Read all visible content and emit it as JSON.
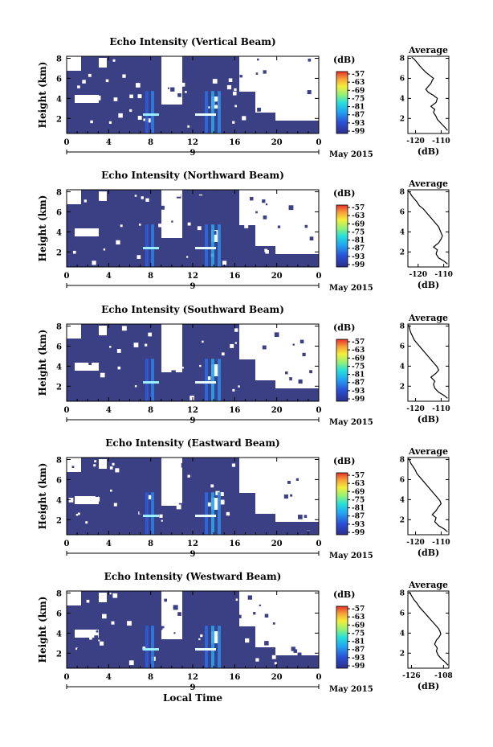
{
  "chart_data": [
    {
      "type": "heatmap",
      "title": "Echo Intensity (Vertical Beam)",
      "ylabel": "Height (km)",
      "yticks": [
        "2",
        "4",
        "6",
        "8"
      ],
      "ylim": [
        0.5,
        8.2
      ],
      "xticks": [
        "0",
        "4",
        "8",
        "12",
        "16",
        "20",
        "0"
      ],
      "xlim": [
        0,
        24
      ],
      "date_label": "9",
      "month_label": "May 2015",
      "colorbar": {
        "unit": "(dB)",
        "ticks": [
          "-57",
          "-63",
          "-69",
          "-75",
          "-81",
          "-87",
          "-93",
          "-99"
        ]
      },
      "profile": {
        "title": "Average",
        "xlabel": "(dB)",
        "xticks": [
          "-120",
          "-110"
        ],
        "xlim": [
          -123,
          -107
        ],
        "yticks": [
          "2",
          "4",
          "6",
          "8"
        ],
        "ylim": [
          0.5,
          8.2
        ],
        "x": [
          -107.5,
          -108.5,
          -110,
          -111.5,
          -112,
          -113,
          -112.5,
          -114,
          -112,
          -111.5,
          -113,
          -115,
          -116,
          -115,
          -114,
          -113.5,
          -113,
          -114.5,
          -116,
          -117.5,
          -118.5,
          -119.5,
          -120.5,
          -121.5
        ],
        "y": [
          0.8,
          1.1,
          1.5,
          1.9,
          2.2,
          2.6,
          2.9,
          3.2,
          3.6,
          4.0,
          4.3,
          4.6,
          4.9,
          5.2,
          5.5,
          5.8,
          6.0,
          6.3,
          6.6,
          7.0,
          7.3,
          7.6,
          7.9,
          8.1
        ]
      }
    },
    {
      "type": "heatmap",
      "title": "Echo Intensity (Northward Beam)",
      "ylabel": "Height (km)",
      "yticks": [
        "2",
        "4",
        "6",
        "8"
      ],
      "ylim": [
        0.5,
        8.2
      ],
      "xticks": [
        "0",
        "4",
        "8",
        "12",
        "16",
        "20",
        "0"
      ],
      "xlim": [
        0,
        24
      ],
      "date_label": "9",
      "month_label": "May 2015",
      "colorbar": {
        "unit": "(dB)",
        "ticks": [
          "-57",
          "-63",
          "-69",
          "-75",
          "-81",
          "-87",
          "-93",
          "-99"
        ]
      },
      "profile": {
        "title": "Average",
        "xlabel": "(dB)",
        "xticks": [
          "-120",
          "-110"
        ],
        "xlim": [
          -124,
          -108
        ],
        "yticks": [
          "2",
          "4",
          "6",
          "8"
        ],
        "ylim": [
          0.5,
          8.2
        ],
        "x": [
          -108.5,
          -110,
          -112,
          -113,
          -112.5,
          -114,
          -112,
          -111,
          -110.5,
          -111,
          -111.5,
          -112,
          -113,
          -114,
          -115,
          -116,
          -117,
          -118,
          -119.5,
          -120.5,
          -121.5,
          -122.5,
          -123.2,
          -123.8
        ],
        "y": [
          0.8,
          1.1,
          1.4,
          1.8,
          2.2,
          2.5,
          2.9,
          3.3,
          3.6,
          3.9,
          4.2,
          4.5,
          4.8,
          5.1,
          5.4,
          5.7,
          6.0,
          6.3,
          6.6,
          7.0,
          7.3,
          7.6,
          7.9,
          8.1
        ]
      }
    },
    {
      "type": "heatmap",
      "title": "Echo Intensity (Southward Beam)",
      "ylabel": "Height (km)",
      "yticks": [
        "2",
        "4",
        "6",
        "8"
      ],
      "ylim": [
        0.5,
        8.2
      ],
      "xticks": [
        "0",
        "4",
        "8",
        "12",
        "16",
        "20",
        "0"
      ],
      "xlim": [
        0,
        24
      ],
      "date_label": "9",
      "month_label": "May 2015",
      "colorbar": {
        "unit": "(dB)",
        "ticks": [
          "-57",
          "-63",
          "-69",
          "-75",
          "-81",
          "-87",
          "-93",
          "-99"
        ]
      },
      "profile": {
        "title": "Average",
        "xlabel": "(dB)",
        "xticks": [
          "-120",
          "-110"
        ],
        "xlim": [
          -123,
          -107
        ],
        "yticks": [
          "2",
          "4",
          "6",
          "8"
        ],
        "ylim": [
          0.5,
          8.2
        ],
        "x": [
          -107.5,
          -109,
          -111,
          -112.5,
          -113,
          -112.5,
          -114,
          -112,
          -111,
          -111.5,
          -112.5,
          -113.5,
          -114.5,
          -115.5,
          -116.5,
          -117.5,
          -118.5,
          -119.5,
          -120.5,
          -121.2,
          -121.8,
          -122.2,
          -122.5,
          -122.7
        ],
        "y": [
          0.8,
          1.1,
          1.4,
          1.8,
          2.2,
          2.5,
          2.9,
          3.3,
          3.6,
          3.9,
          4.2,
          4.5,
          4.8,
          5.1,
          5.4,
          5.7,
          6.0,
          6.3,
          6.6,
          7.0,
          7.3,
          7.6,
          7.9,
          8.1
        ]
      }
    },
    {
      "type": "heatmap",
      "title": "Echo Intensity (Eastward Beam)",
      "ylabel": "Height (km)",
      "yticks": [
        "2",
        "4",
        "6",
        "8"
      ],
      "ylim": [
        0.5,
        8.2
      ],
      "xticks": [
        "0",
        "4",
        "8",
        "12",
        "16",
        "20",
        "0"
      ],
      "xlim": [
        0,
        24
      ],
      "date_label": "9",
      "month_label": "May 2015",
      "colorbar": {
        "unit": "(dB)",
        "ticks": [
          "-57",
          "-63",
          "-69",
          "-75",
          "-81",
          "-87",
          "-93",
          "-99"
        ]
      },
      "profile": {
        "title": "Average",
        "xlabel": "(dB)",
        "xticks": [
          "-120",
          "-110"
        ],
        "xlim": [
          -123,
          -107
        ],
        "yticks": [
          "2",
          "4",
          "6",
          "8"
        ],
        "ylim": [
          0.5,
          8.2
        ],
        "x": [
          -107.5,
          -109,
          -111,
          -112.5,
          -112,
          -113.5,
          -112,
          -111,
          -110,
          -110.5,
          -111.5,
          -112.5,
          -113.5,
          -114.5,
          -115.5,
          -116.5,
          -117.5,
          -118.5,
          -119.5,
          -120.2,
          -121,
          -121.8,
          -122.3,
          -122.7
        ],
        "y": [
          0.8,
          1.1,
          1.4,
          1.8,
          2.2,
          2.5,
          2.9,
          3.3,
          3.6,
          3.9,
          4.2,
          4.5,
          4.8,
          5.1,
          5.4,
          5.7,
          6.0,
          6.3,
          6.6,
          7.0,
          7.3,
          7.6,
          7.9,
          8.1
        ]
      }
    },
    {
      "type": "heatmap",
      "title": "Echo Intensity (Westward Beam)",
      "ylabel": "Height (km)",
      "yticks": [
        "2",
        "4",
        "6",
        "8"
      ],
      "ylim": [
        0.5,
        8.2
      ],
      "xticks": [
        "0",
        "4",
        "8",
        "12",
        "16",
        "20",
        "0"
      ],
      "xlim": [
        0,
        24
      ],
      "date_label": "9",
      "month_label": "May 2015",
      "xlabel": "Local Time",
      "colorbar": {
        "unit": "(dB)",
        "ticks": [
          "-57",
          "-63",
          "-69",
          "-75",
          "-81",
          "-87",
          "-93",
          "-99"
        ]
      },
      "profile": {
        "title": "Average",
        "xlabel": "(dB)",
        "xticks": [
          "-126",
          "-108"
        ],
        "xlim": [
          -128,
          -105
        ],
        "yticks": [
          "2",
          "4",
          "6",
          "8"
        ],
        "ylim": [
          0.5,
          8.2
        ],
        "x": [
          -105.5,
          -107,
          -109,
          -111,
          -112,
          -111.5,
          -113,
          -112,
          -110.5,
          -109.5,
          -110,
          -111,
          -112.5,
          -114,
          -115.5,
          -117,
          -118.5,
          -120,
          -121.5,
          -123,
          -124.5,
          -125.5,
          -126.5,
          -127.2
        ],
        "y": [
          0.8,
          1.1,
          1.4,
          1.8,
          2.2,
          2.5,
          2.9,
          3.3,
          3.6,
          3.9,
          4.2,
          4.5,
          4.8,
          5.1,
          5.4,
          5.7,
          6.0,
          6.3,
          6.6,
          7.0,
          7.3,
          7.6,
          7.9,
          8.1
        ]
      }
    }
  ]
}
